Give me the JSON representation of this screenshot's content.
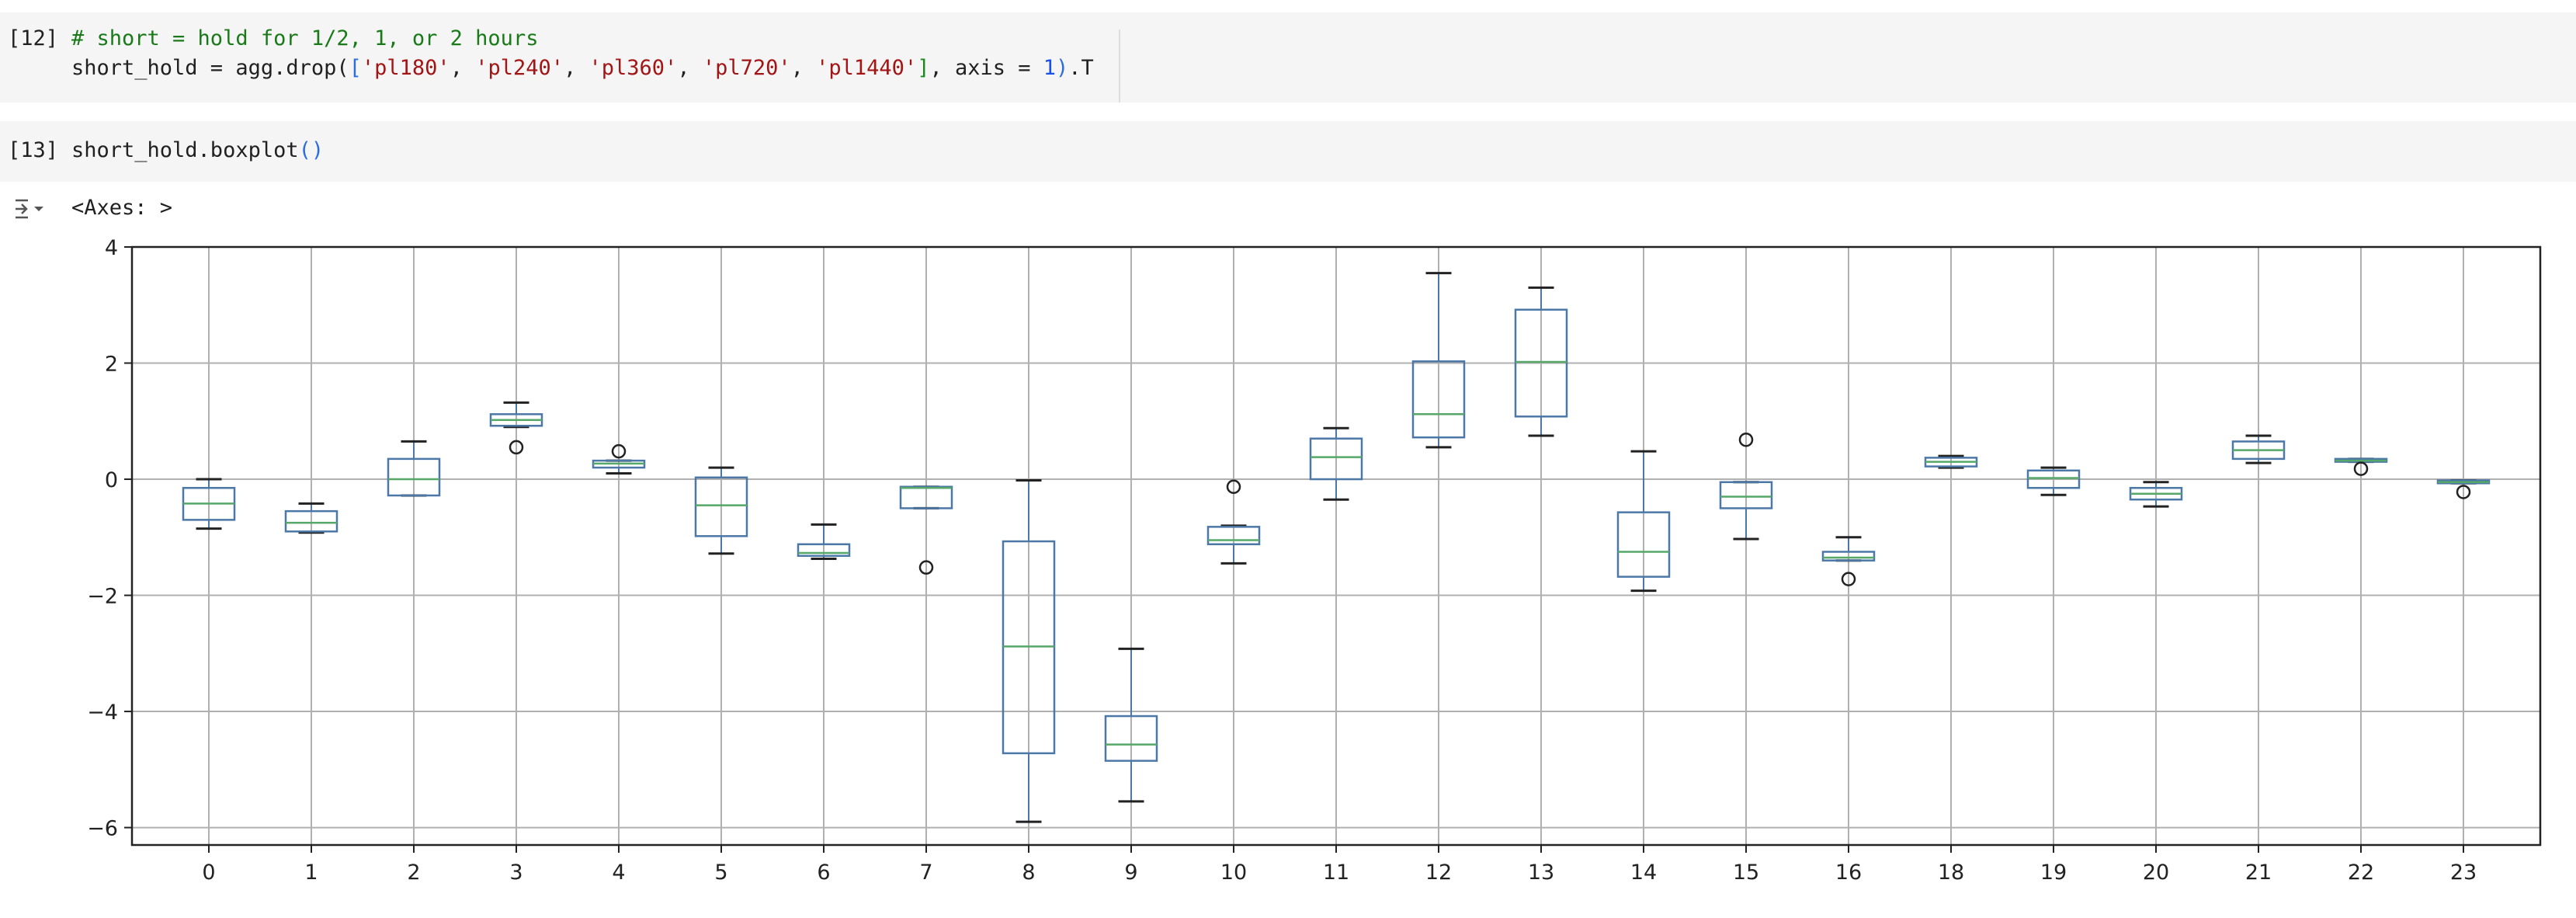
{
  "cells": [
    {
      "prompt": "[12]",
      "comment": "# short = hold for 1/2, 1, or 2 hours",
      "code_prefix": "short_hold = agg.drop(",
      "open_bracket": "[",
      "list_items": [
        "'pl180'",
        "'pl240'",
        "'pl360'",
        "'pl720'",
        "'pl1440'"
      ],
      "sep": ", ",
      "close_bracket": "]",
      "axis_kw": ", axis = ",
      "axis_val": "1",
      "close_paren": ")",
      "suffix": ".T"
    },
    {
      "prompt": "[13]",
      "code_prefix": "short_hold.boxplot",
      "call_parens": "()"
    }
  ],
  "output": {
    "icon": "output-toggle-icon",
    "text": "<Axes: >"
  },
  "chart_data": {
    "type": "boxplot",
    "ylim": [
      -6.3,
      4.0
    ],
    "yticks": [
      4,
      2,
      0,
      -2,
      -4,
      -6
    ],
    "grid": true,
    "colors": {
      "box": "#4c78a8",
      "median": "#55a868",
      "whisker": "#222222",
      "grid": "#b0b0b0"
    },
    "boxes": [
      {
        "label": "0",
        "wlo": -0.85,
        "q1": -0.7,
        "med": -0.42,
        "q3": -0.15,
        "whi": 0.0,
        "fliers": []
      },
      {
        "label": "1",
        "wlo": -0.92,
        "q1": -0.9,
        "med": -0.75,
        "q3": -0.55,
        "whi": -0.42,
        "fliers": []
      },
      {
        "label": "2",
        "wlo": -0.28,
        "q1": -0.28,
        "med": 0.0,
        "q3": 0.35,
        "whi": 0.65,
        "fliers": []
      },
      {
        "label": "3",
        "wlo": 0.9,
        "q1": 0.92,
        "med": 1.02,
        "q3": 1.12,
        "whi": 1.32,
        "fliers": [
          0.55
        ]
      },
      {
        "label": "4",
        "wlo": 0.1,
        "q1": 0.2,
        "med": 0.27,
        "q3": 0.32,
        "whi": 0.32,
        "fliers": [
          0.48
        ]
      },
      {
        "label": "5",
        "wlo": -1.28,
        "q1": -0.98,
        "med": -0.45,
        "q3": 0.03,
        "whi": 0.2,
        "fliers": []
      },
      {
        "label": "6",
        "wlo": -1.37,
        "q1": -1.32,
        "med": -1.27,
        "q3": -1.12,
        "whi": -0.78,
        "fliers": []
      },
      {
        "label": "7",
        "wlo": -0.5,
        "q1": -0.5,
        "med": -0.15,
        "q3": -0.13,
        "whi": -0.13,
        "fliers": [
          -1.52
        ]
      },
      {
        "label": "8",
        "wlo": -5.9,
        "q1": -4.72,
        "med": -2.88,
        "q3": -1.07,
        "whi": -0.02,
        "fliers": []
      },
      {
        "label": "9",
        "wlo": -5.55,
        "q1": -4.85,
        "med": -4.57,
        "q3": -4.08,
        "whi": -2.92,
        "fliers": []
      },
      {
        "label": "10",
        "wlo": -1.45,
        "q1": -1.12,
        "med": -1.05,
        "q3": -0.82,
        "whi": -0.8,
        "fliers": [
          -0.13
        ]
      },
      {
        "label": "11",
        "wlo": -0.35,
        "q1": 0.0,
        "med": 0.38,
        "q3": 0.7,
        "whi": 0.88,
        "fliers": []
      },
      {
        "label": "12",
        "wlo": 0.55,
        "q1": 0.72,
        "med": 1.12,
        "q3": 2.03,
        "whi": 3.55,
        "fliers": []
      },
      {
        "label": "13",
        "wlo": 0.75,
        "q1": 1.08,
        "med": 2.02,
        "q3": 2.92,
        "whi": 3.3,
        "fliers": []
      },
      {
        "label": "14",
        "wlo": -1.92,
        "q1": -1.68,
        "med": -1.25,
        "q3": -0.57,
        "whi": 0.48,
        "fliers": []
      },
      {
        "label": "15",
        "wlo": -1.03,
        "q1": -0.5,
        "med": -0.3,
        "q3": -0.05,
        "whi": -0.05,
        "fliers": [
          0.68
        ]
      },
      {
        "label": "16",
        "wlo": -1.4,
        "q1": -1.4,
        "med": -1.35,
        "q3": -1.25,
        "whi": -1.0,
        "fliers": [
          -1.72
        ]
      },
      {
        "label": "18",
        "wlo": 0.2,
        "q1": 0.22,
        "med": 0.3,
        "q3": 0.37,
        "whi": 0.4,
        "fliers": []
      },
      {
        "label": "19",
        "wlo": -0.27,
        "q1": -0.15,
        "med": 0.02,
        "q3": 0.15,
        "whi": 0.2,
        "fliers": []
      },
      {
        "label": "20",
        "wlo": -0.47,
        "q1": -0.35,
        "med": -0.25,
        "q3": -0.15,
        "whi": -0.05,
        "fliers": []
      },
      {
        "label": "21",
        "wlo": 0.28,
        "q1": 0.35,
        "med": 0.5,
        "q3": 0.65,
        "whi": 0.75,
        "fliers": []
      },
      {
        "label": "22",
        "wlo": 0.3,
        "q1": 0.3,
        "med": 0.32,
        "q3": 0.35,
        "whi": 0.35,
        "fliers": [
          0.18
        ]
      },
      {
        "label": "23",
        "wlo": -0.07,
        "q1": -0.07,
        "med": -0.05,
        "q3": -0.02,
        "whi": -0.02,
        "fliers": [
          -0.22
        ]
      }
    ]
  }
}
